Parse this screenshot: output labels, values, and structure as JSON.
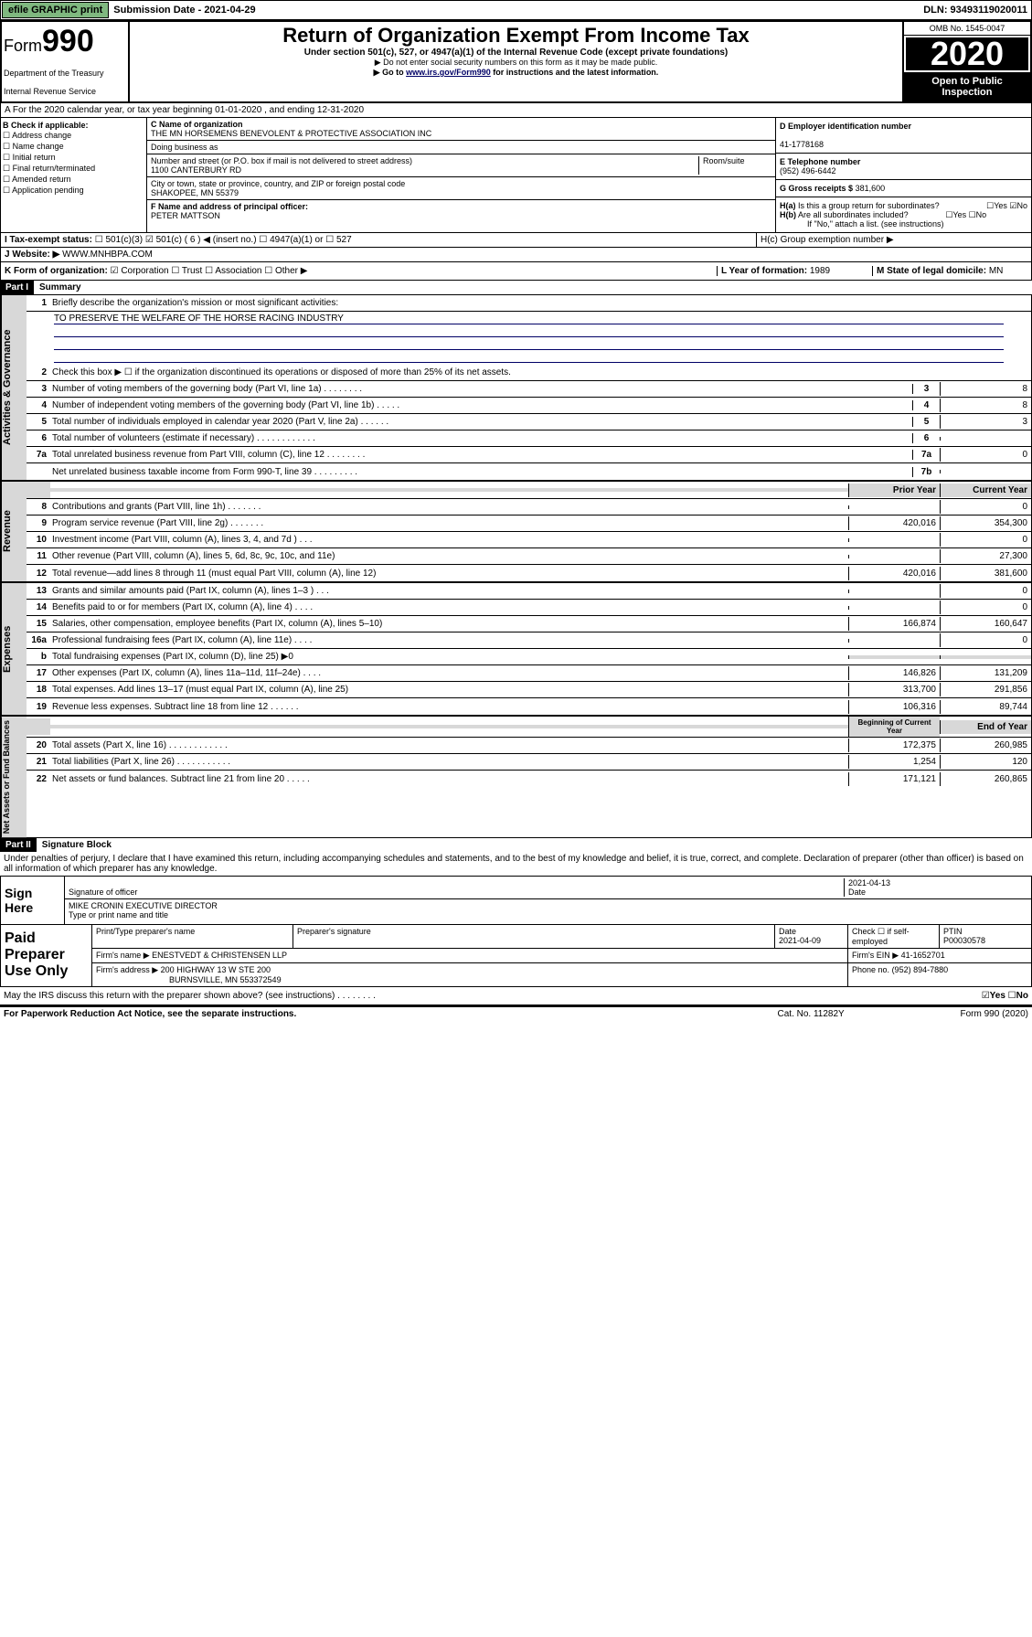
{
  "top": {
    "efile": "efile GRAPHIC print",
    "sub_label": "Submission Date - 2021-04-29",
    "dln": "DLN: 93493119020011"
  },
  "header": {
    "form_word": "Form",
    "form_num": "990",
    "dept": "Department of the Treasury",
    "irs": "Internal Revenue Service",
    "title": "Return of Organization Exempt From Income Tax",
    "sub1": "Under section 501(c), 527, or 4947(a)(1) of the Internal Revenue Code (except private foundations)",
    "sub2": "▶ Do not enter social security numbers on this form as it may be made public.",
    "sub3": "▶ Go to www.irs.gov/Form990 for instructions and the latest information.",
    "sub3_link": "www.irs.gov/Form990",
    "omb": "OMB No. 1545-0047",
    "year": "2020",
    "open1": "Open to Public",
    "open2": "Inspection"
  },
  "a": "A For the 2020 calendar year, or tax year beginning 01-01-2020    , and ending 12-31-2020",
  "b": {
    "label": "B Check if applicable:",
    "items": [
      "Address change",
      "Name change",
      "Initial return",
      "Final return/terminated",
      "Amended return",
      "Application pending"
    ]
  },
  "c": {
    "name_label": "C Name of organization",
    "name": "THE MN HORSEMENS BENEVOLENT & PROTECTIVE ASSOCIATION INC",
    "dba_label": "Doing business as",
    "addr_label": "Number and street (or P.O. box if mail is not delivered to street address)",
    "room_label": "Room/suite",
    "addr": "1100 CANTERBURY RD",
    "city_label": "City or town, state or province, country, and ZIP or foreign postal code",
    "city": "SHAKOPEE, MN  55379"
  },
  "d": {
    "label": "D Employer identification number",
    "val": "41-1778168"
  },
  "e": {
    "label": "E Telephone number",
    "val": "(952) 496-6442"
  },
  "g": {
    "label": "G Gross receipts $",
    "val": "381,600"
  },
  "f": {
    "label": "F Name and address of principal officer:",
    "val": "PETER MATTSON"
  },
  "ha": "H(a)  Is this a group return for subordinates?",
  "hb": "H(b)  Are all subordinates included?",
  "hb2": "If \"No,\" attach a list. (see instructions)",
  "hc": "H(c)  Group exemption number ▶",
  "i": {
    "label": "I   Tax-exempt status:",
    "opts": [
      "501(c)(3)",
      "501(c) ( 6 ) ◀ (insert no.)",
      "4947(a)(1) or",
      "527"
    ],
    "checked": 1
  },
  "j": {
    "label": "J   Website: ▶",
    "val": "WWW.MNHBPA.COM"
  },
  "k": {
    "label": "K Form of organization:",
    "opts": [
      "Corporation",
      "Trust",
      "Association",
      "Other ▶"
    ],
    "checked": 0
  },
  "l": {
    "label": "L Year of formation:",
    "val": "1989"
  },
  "m": {
    "label": "M State of legal domicile:",
    "val": "MN"
  },
  "part1": {
    "hdr": "Part I",
    "title": "Summary"
  },
  "sect1": {
    "side": "Activities & Governance",
    "r1": "Briefly describe the organization's mission or most significant activities:",
    "mission": "TO PRESERVE THE WELFARE OF THE HORSE RACING INDUSTRY",
    "r2": "Check this box ▶ ☐  if the organization discontinued its operations or disposed of more than 25% of its net assets.",
    "rows": [
      {
        "n": "3",
        "d": "Number of voting members of the governing body (Part VI, line 1a)   .    .    .    .    .    .    .    .",
        "rn": "3",
        "v": "8"
      },
      {
        "n": "4",
        "d": "Number of independent voting members of the governing body (Part VI, line 1b)    .    .    .    .    .",
        "rn": "4",
        "v": "8"
      },
      {
        "n": "5",
        "d": "Total number of individuals employed in calendar year 2020 (Part V, line 2a)    .    .    .    .    .    .",
        "rn": "5",
        "v": "3"
      },
      {
        "n": "6",
        "d": "Total number of volunteers (estimate if necessary)    .    .    .    .    .    .    .    .    .    .    .    .",
        "rn": "6",
        "v": ""
      },
      {
        "n": "7a",
        "d": "Total unrelated business revenue from Part VIII, column (C), line 12    .    .    .    .    .    .    .    .",
        "rn": "7a",
        "v": "0"
      },
      {
        "n": "",
        "d": "Net unrelated business taxable income from Form 990-T, line 39    .    .    .    .    .    .    .    .    .",
        "rn": "7b",
        "v": ""
      }
    ]
  },
  "sect2": {
    "side": "Revenue",
    "h1": "Prior Year",
    "h2": "Current Year",
    "rows": [
      {
        "n": "8",
        "d": "Contributions and grants (Part VIII, line 1h)    .    .    .    .    .    .    .",
        "p": "",
        "c": "0"
      },
      {
        "n": "9",
        "d": "Program service revenue (Part VIII, line 2g)    .    .    .    .    .    .    .",
        "p": "420,016",
        "c": "354,300"
      },
      {
        "n": "10",
        "d": "Investment income (Part VIII, column (A), lines 3, 4, and 7d )    .    .    .",
        "p": "",
        "c": "0"
      },
      {
        "n": "11",
        "d": "Other revenue (Part VIII, column (A), lines 5, 6d, 8c, 9c, 10c, and 11e)",
        "p": "",
        "c": "27,300"
      },
      {
        "n": "12",
        "d": "Total revenue—add lines 8 through 11 (must equal Part VIII, column (A), line 12)",
        "p": "420,016",
        "c": "381,600"
      }
    ]
  },
  "sect3": {
    "side": "Expenses",
    "rows": [
      {
        "n": "13",
        "d": "Grants and similar amounts paid (Part IX, column (A), lines 1–3 )    .    .    .",
        "p": "",
        "c": "0"
      },
      {
        "n": "14",
        "d": "Benefits paid to or for members (Part IX, column (A), line 4)    .    .    .    .",
        "p": "",
        "c": "0"
      },
      {
        "n": "15",
        "d": "Salaries, other compensation, employee benefits (Part IX, column (A), lines 5–10)",
        "p": "166,874",
        "c": "160,647"
      },
      {
        "n": "16a",
        "d": "Professional fundraising fees (Part IX, column (A), line 11e)    .    .    .    .",
        "p": "",
        "c": "0"
      },
      {
        "n": "b",
        "d": "Total fundraising expenses (Part IX, column (D), line 25) ▶0",
        "p": "shade",
        "c": "shade"
      },
      {
        "n": "17",
        "d": "Other expenses (Part IX, column (A), lines 11a–11d, 11f–24e)    .    .    .    .",
        "p": "146,826",
        "c": "131,209"
      },
      {
        "n": "18",
        "d": "Total expenses. Add lines 13–17 (must equal Part IX, column (A), line 25)",
        "p": "313,700",
        "c": "291,856"
      },
      {
        "n": "19",
        "d": "Revenue less expenses. Subtract line 18 from line 12    .    .    .    .    .    .",
        "p": "106,316",
        "c": "89,744"
      }
    ]
  },
  "sect4": {
    "side": "Net Assets or Fund Balances",
    "h1": "Beginning of Current Year",
    "h2": "End of Year",
    "rows": [
      {
        "n": "20",
        "d": "Total assets (Part X, line 16)    .    .    .    .    .    .    .    .    .    .    .    .",
        "p": "172,375",
        "c": "260,985"
      },
      {
        "n": "21",
        "d": "Total liabilities (Part X, line 26)    .    .    .    .    .    .    .    .    .    .    .",
        "p": "1,254",
        "c": "120"
      },
      {
        "n": "22",
        "d": "Net assets or fund balances. Subtract line 21 from line 20    .    .    .    .    .",
        "p": "171,121",
        "c": "260,865"
      }
    ]
  },
  "part2": {
    "hdr": "Part II",
    "title": "Signature Block",
    "perjury": "Under penalties of perjury, I declare that I have examined this return, including accompanying schedules and statements, and to the best of my knowledge and belief, it is true, correct, and complete. Declaration of preparer (other than officer) is based on all information of which preparer has any knowledge."
  },
  "sign": {
    "l": "Sign Here",
    "sig_label": "Signature of officer",
    "date": "2021-04-13",
    "date_label": "Date",
    "name": "MIKE CRONIN  EXECUTIVE DIRECTOR",
    "name_label": "Type or print name and title"
  },
  "paid": {
    "l": "Paid Preparer Use Only",
    "h1": "Print/Type preparer's name",
    "h2": "Preparer's signature",
    "h3": "Date",
    "h3v": "2021-04-09",
    "h4": "Check ☐ if self-employed",
    "h5": "PTIN",
    "h5v": "P00030578",
    "firm_label": "Firm's name   ▶",
    "firm": "ENESTVEDT & CHRISTENSEN LLP",
    "ein_label": "Firm's EIN ▶",
    "ein": "41-1652701",
    "addr_label": "Firm's address ▶",
    "addr": "200 HIGHWAY 13 W STE 200",
    "addr2": "BURNSVILLE, MN  553372549",
    "phone_label": "Phone no.",
    "phone": "(952) 894-7880"
  },
  "discuss": "May the IRS discuss this return with the preparer shown above? (see instructions)    .    .    .    .    .    .    .    .",
  "footer": {
    "l": "For Paperwork Reduction Act Notice, see the separate instructions.",
    "c": "Cat. No. 11282Y",
    "r": "Form 990 (2020)"
  }
}
